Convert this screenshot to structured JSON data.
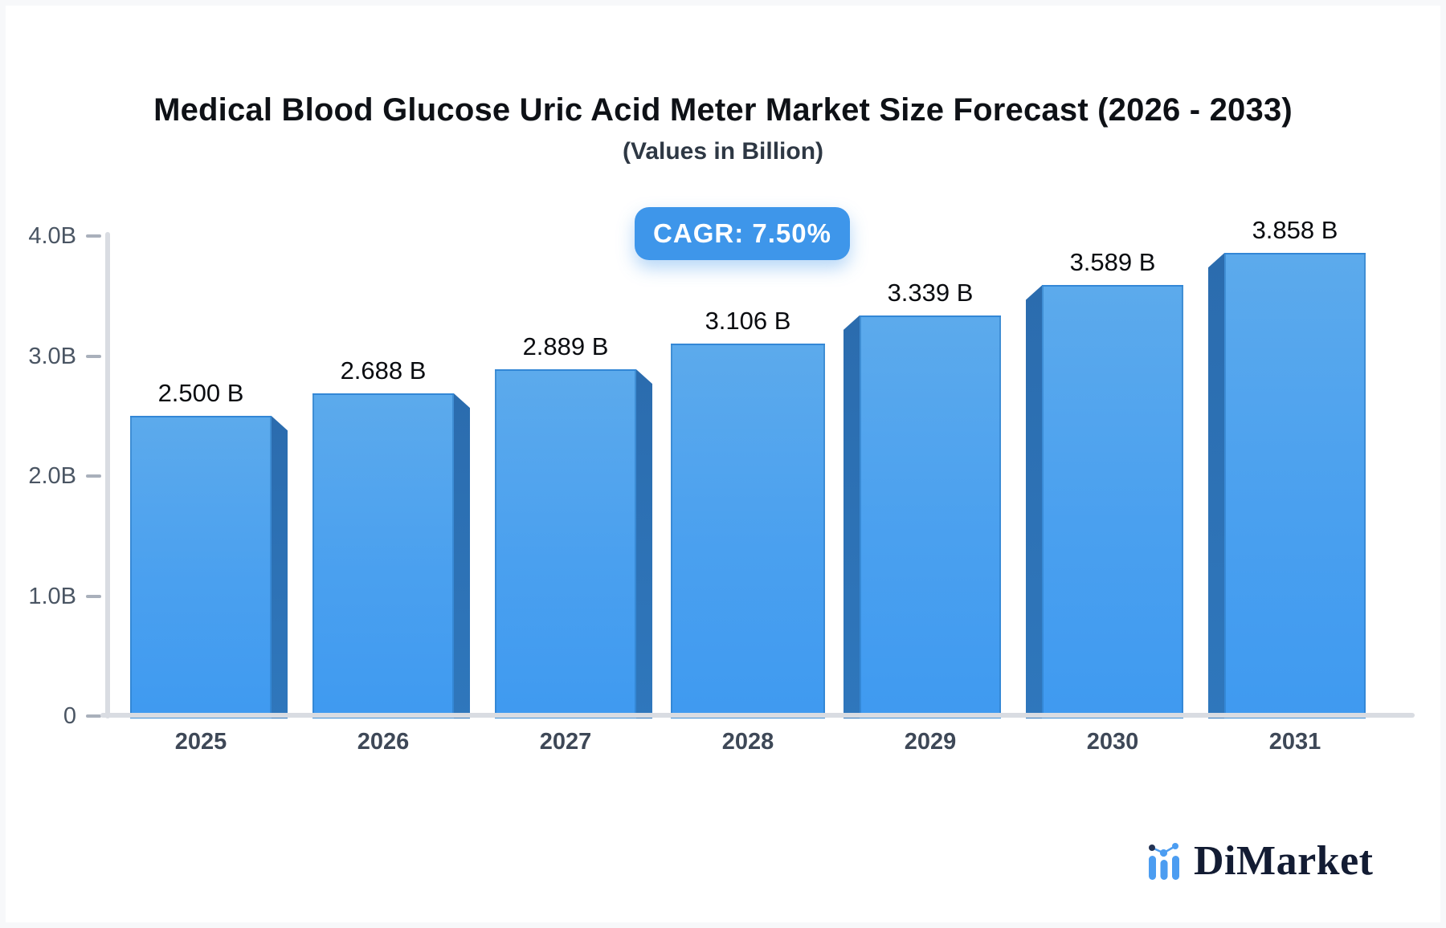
{
  "header": {
    "title": "Medical Blood Glucose Uric Acid Meter Market Size Forecast (2026 - 2033)",
    "subtitle": "(Values in Billion)"
  },
  "badge": {
    "label": "CAGR: 7.50%"
  },
  "brand": {
    "name": "DiMarket",
    "icon": "mini-bar-line-chart-icon"
  },
  "colors": {
    "bar_face_top": "#5caaec",
    "bar_face_bottom": "#3f9af0",
    "bar_side": "#2b6cae",
    "badge_bg": "#3e96ea",
    "axis_line": "#d9dce2",
    "tick_dash": "#a9b0bb",
    "axis_text": "#4a5563",
    "year_text": "#3e4857",
    "value_text": "#0a0c10",
    "title_text": "#0e1116",
    "logo_blue": "#4c9df1",
    "logo_navy": "#243354",
    "page_bg": "#f7f8fa",
    "card_bg": "#ffffff"
  },
  "chart_data": {
    "type": "bar",
    "title": "Medical Blood Glucose Uric Acid Meter Market Size Forecast (2026 - 2033)",
    "subtitle": "(Values in Billion)",
    "categories": [
      "2025",
      "2026",
      "2027",
      "2028",
      "2029",
      "2030",
      "2031"
    ],
    "values": [
      2.5,
      2.688,
      2.889,
      3.106,
      3.339,
      3.589,
      3.858
    ],
    "value_labels": [
      "2.500 B",
      "2.688 B",
      "2.889 B",
      "3.106 B",
      "3.339 B",
      "3.589 B",
      "3.858 B"
    ],
    "unit": "Billion",
    "cagr": "7.50%",
    "xlabel": "",
    "ylabel": "",
    "ylim": [
      0,
      4.0
    ],
    "yticks": [
      {
        "value": 0.0,
        "label": "0"
      },
      {
        "value": 1.0,
        "label": "1.0B"
      },
      {
        "value": 2.0,
        "label": "2.0B"
      },
      {
        "value": 3.0,
        "label": "3.0B"
      },
      {
        "value": 4.0,
        "label": "4.0B"
      }
    ],
    "grid": false,
    "legend": false,
    "style": "3d-perspective-bars"
  }
}
